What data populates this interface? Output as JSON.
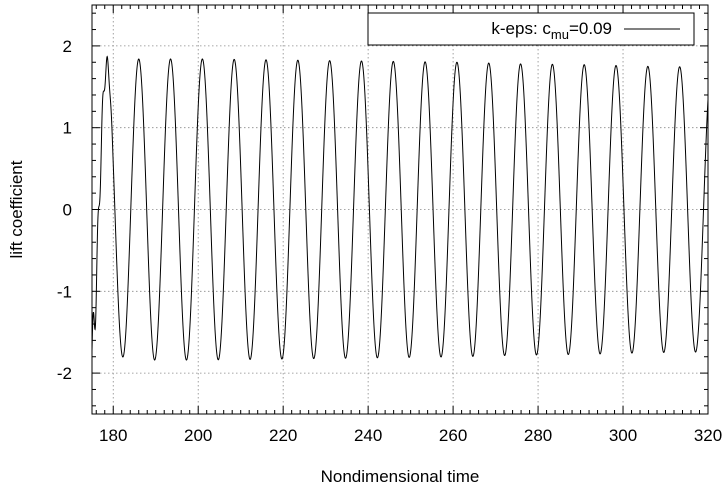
{
  "chart_data": {
    "type": "line",
    "title": "",
    "xlabel": "Nondimensional time",
    "ylabel": "lift coefficient",
    "xlim": [
      175,
      320
    ],
    "ylim": [
      -2.5,
      2.5
    ],
    "x_ticks": [
      180,
      200,
      220,
      240,
      260,
      280,
      300,
      320
    ],
    "y_ticks": [
      -2,
      -1,
      0,
      1,
      2
    ],
    "x_tick_labels": [
      "180",
      "200",
      "220",
      "240",
      "260",
      "280",
      "300",
      "320"
    ],
    "y_tick_labels": [
      "-2",
      "-1",
      "0",
      "1",
      "2"
    ],
    "grid": true,
    "legend_position": "top-right",
    "series": [
      {
        "name_prefix": "k-eps: c",
        "name_subscript": "mu",
        "name_suffix": "=0.09",
        "color": "#000000",
        "signal": {
          "form": "sinusoid",
          "period": 7.49,
          "phase_x_at_peak": 186.0,
          "transient_end": 180.0,
          "amplitude_points": [
            [
              175,
              1.76
            ],
            [
              180,
              1.78
            ],
            [
              186,
              1.84
            ],
            [
              194,
              1.84
            ],
            [
              201,
              1.84
            ],
            [
              216,
              1.83
            ],
            [
              231,
              1.82
            ],
            [
              246,
              1.81
            ],
            [
              261,
              1.8
            ],
            [
              276,
              1.78
            ],
            [
              291,
              1.77
            ],
            [
              306,
              1.75
            ],
            [
              320,
              1.74
            ]
          ],
          "offset": 0.0
        }
      }
    ]
  }
}
